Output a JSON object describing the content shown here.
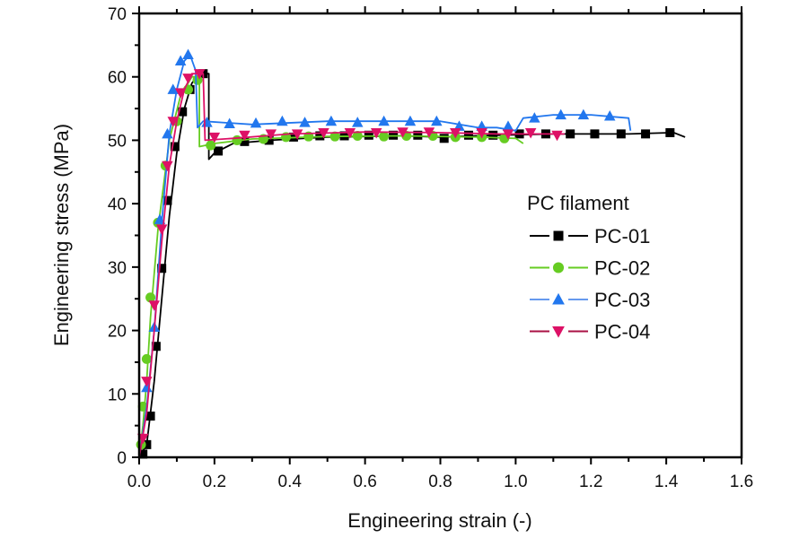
{
  "chart_data": {
    "type": "line",
    "title": "",
    "xlabel": "Engineering strain (-)",
    "ylabel": "Engineering stress (MPa)",
    "xlim": [
      0.0,
      1.6
    ],
    "ylim": [
      0,
      70
    ],
    "xticks": [
      "0.0",
      "0.2",
      "0.4",
      "0.6",
      "0.8",
      "1.0",
      "1.2",
      "1.4",
      "1.6"
    ],
    "yticks": [
      "0",
      "10",
      "20",
      "30",
      "40",
      "50",
      "60",
      "70"
    ],
    "grid": false,
    "legend": {
      "title": "PC filament",
      "placement": "center-right"
    },
    "series": [
      {
        "name": "PC-01",
        "color": "#000000",
        "marker": "square",
        "line": [
          [
            0,
            0
          ],
          [
            0.02,
            2
          ],
          [
            0.04,
            12
          ],
          [
            0.06,
            25
          ],
          [
            0.08,
            38
          ],
          [
            0.1,
            48
          ],
          [
            0.12,
            55
          ],
          [
            0.14,
            59
          ],
          [
            0.16,
            60.5
          ],
          [
            0.185,
            60.5
          ],
          [
            0.185,
            47
          ],
          [
            0.2,
            48
          ],
          [
            0.25,
            49.5
          ],
          [
            0.35,
            50
          ],
          [
            0.5,
            50.5
          ],
          [
            0.7,
            50.7
          ],
          [
            0.8,
            50.5
          ],
          [
            0.95,
            50.8
          ],
          [
            1.1,
            51
          ],
          [
            1.3,
            51
          ],
          [
            1.42,
            51.2
          ],
          [
            1.45,
            50.5
          ]
        ],
        "markers": [
          [
            0.01,
            0.5
          ],
          [
            0.02,
            2
          ],
          [
            0.03,
            6.5
          ],
          [
            0.045,
            17.5
          ],
          [
            0.06,
            29.8
          ],
          [
            0.075,
            40.5
          ],
          [
            0.095,
            49
          ],
          [
            0.115,
            54.5
          ],
          [
            0.135,
            58
          ],
          [
            0.17,
            60.5
          ],
          [
            0.21,
            48.3
          ],
          [
            0.28,
            49.8
          ],
          [
            0.345,
            50
          ],
          [
            0.41,
            50.5
          ],
          [
            0.48,
            50.7
          ],
          [
            0.545,
            50.7
          ],
          [
            0.61,
            50.8
          ],
          [
            0.675,
            50.8
          ],
          [
            0.74,
            50.8
          ],
          [
            0.81,
            50.3
          ],
          [
            0.875,
            50.8
          ],
          [
            0.94,
            50.8
          ],
          [
            1.01,
            51
          ],
          [
            1.08,
            51
          ],
          [
            1.145,
            51
          ],
          [
            1.21,
            51
          ],
          [
            1.28,
            51
          ],
          [
            1.345,
            51
          ],
          [
            1.41,
            51.2
          ]
        ]
      },
      {
        "name": "PC-02",
        "color": "#66cc22",
        "marker": "circle",
        "line": [
          [
            0,
            0
          ],
          [
            0.01,
            5
          ],
          [
            0.02,
            12
          ],
          [
            0.03,
            22
          ],
          [
            0.05,
            36
          ],
          [
            0.08,
            50
          ],
          [
            0.11,
            57
          ],
          [
            0.14,
            60
          ],
          [
            0.16,
            60
          ],
          [
            0.16,
            49
          ],
          [
            0.2,
            49.5
          ],
          [
            0.3,
            50.2
          ],
          [
            0.5,
            50.6
          ],
          [
            0.7,
            50.7
          ],
          [
            0.9,
            50.5
          ],
          [
            1.0,
            50.3
          ],
          [
            1.02,
            49.5
          ]
        ],
        "markers": [
          [
            0.005,
            2
          ],
          [
            0.01,
            8
          ],
          [
            0.02,
            15.5
          ],
          [
            0.03,
            25.2
          ],
          [
            0.05,
            37
          ],
          [
            0.07,
            46
          ],
          [
            0.1,
            53
          ],
          [
            0.13,
            58
          ],
          [
            0.155,
            59.5
          ],
          [
            0.19,
            49.2
          ],
          [
            0.26,
            50
          ],
          [
            0.33,
            50.2
          ],
          [
            0.39,
            50.5
          ],
          [
            0.45,
            50.6
          ],
          [
            0.52,
            50.6
          ],
          [
            0.58,
            50.7
          ],
          [
            0.65,
            50.6
          ],
          [
            0.71,
            50.7
          ],
          [
            0.78,
            50.7
          ],
          [
            0.84,
            50.5
          ],
          [
            0.91,
            50.5
          ],
          [
            0.97,
            50.3
          ]
        ]
      },
      {
        "name": "PC-03",
        "color": "#2277ee",
        "marker": "triangle-up",
        "line": [
          [
            0,
            0
          ],
          [
            0.02,
            8
          ],
          [
            0.04,
            20
          ],
          [
            0.06,
            37
          ],
          [
            0.08,
            51
          ],
          [
            0.1,
            58
          ],
          [
            0.12,
            62.5
          ],
          [
            0.135,
            63.5
          ],
          [
            0.15,
            61
          ],
          [
            0.155,
            52
          ],
          [
            0.17,
            53
          ],
          [
            0.3,
            52.5
          ],
          [
            0.5,
            53
          ],
          [
            0.7,
            53
          ],
          [
            0.8,
            53
          ],
          [
            0.9,
            52
          ],
          [
            0.95,
            52
          ],
          [
            1.0,
            51.5
          ],
          [
            1.02,
            53.5
          ],
          [
            1.1,
            54
          ],
          [
            1.2,
            54
          ],
          [
            1.3,
            53.5
          ],
          [
            1.305,
            51.5
          ]
        ],
        "markers": [
          [
            0.02,
            11
          ],
          [
            0.04,
            20.5
          ],
          [
            0.055,
            37.5
          ],
          [
            0.075,
            51
          ],
          [
            0.09,
            58
          ],
          [
            0.11,
            62.5
          ],
          [
            0.13,
            63.5
          ],
          [
            0.18,
            52.8
          ],
          [
            0.24,
            52.6
          ],
          [
            0.31,
            52.7
          ],
          [
            0.38,
            53
          ],
          [
            0.44,
            52.8
          ],
          [
            0.51,
            53
          ],
          [
            0.58,
            52.8
          ],
          [
            0.65,
            53
          ],
          [
            0.72,
            53
          ],
          [
            0.79,
            53
          ],
          [
            0.85,
            52.2
          ],
          [
            0.91,
            52.2
          ],
          [
            0.98,
            52.2
          ],
          [
            1.05,
            53.5
          ],
          [
            1.12,
            54
          ],
          [
            1.18,
            54
          ],
          [
            1.25,
            53.8
          ]
        ]
      },
      {
        "name": "PC-04",
        "color": "#dd1166",
        "marker": "triangle-down",
        "line": [
          [
            0,
            0
          ],
          [
            0.02,
            7
          ],
          [
            0.04,
            20
          ],
          [
            0.06,
            34
          ],
          [
            0.08,
            46
          ],
          [
            0.1,
            53
          ],
          [
            0.12,
            58
          ],
          [
            0.14,
            60.5
          ],
          [
            0.17,
            60.5
          ],
          [
            0.175,
            50
          ],
          [
            0.25,
            50.3
          ],
          [
            0.4,
            51
          ],
          [
            0.6,
            51.3
          ],
          [
            0.8,
            51.2
          ],
          [
            0.95,
            51
          ],
          [
            1.05,
            51
          ],
          [
            1.13,
            51
          ]
        ],
        "markers": [
          [
            0.01,
            3
          ],
          [
            0.02,
            12
          ],
          [
            0.04,
            24
          ],
          [
            0.06,
            36
          ],
          [
            0.075,
            46
          ],
          [
            0.09,
            53
          ],
          [
            0.11,
            57.5
          ],
          [
            0.13,
            59.8
          ],
          [
            0.16,
            60.5
          ],
          [
            0.2,
            50.5
          ],
          [
            0.28,
            50.8
          ],
          [
            0.35,
            51
          ],
          [
            0.42,
            51
          ],
          [
            0.49,
            51.2
          ],
          [
            0.56,
            51.2
          ],
          [
            0.63,
            51.2
          ],
          [
            0.7,
            51.3
          ],
          [
            0.77,
            51.3
          ],
          [
            0.84,
            51.2
          ],
          [
            0.91,
            51.2
          ],
          [
            0.98,
            51
          ],
          [
            1.04,
            51.2
          ],
          [
            1.11,
            50.8
          ]
        ]
      }
    ]
  }
}
